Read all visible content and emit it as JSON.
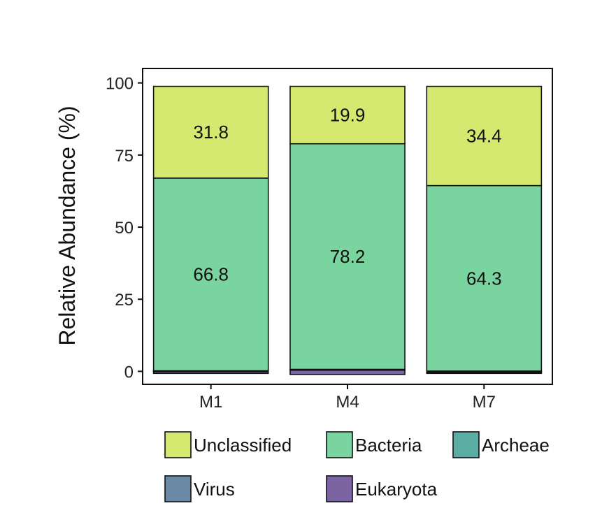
{
  "chart_data": {
    "type": "bar",
    "stacked": true,
    "title": "",
    "xlabel": "",
    "ylabel": "Relative Abundance (%)",
    "ylim": [
      -4.5,
      105
    ],
    "yticks": [
      0,
      25,
      50,
      75,
      100
    ],
    "categories": [
      "M1",
      "M4",
      "M7"
    ],
    "grid": false,
    "legend_position": "bottom",
    "series": [
      {
        "name": "Eukaryota",
        "color": "#7b64a1",
        "values": [
          0.6,
          1.6,
          0.4
        ]
      },
      {
        "name": "Virus",
        "color": "#6a8aa8",
        "values": [
          0.2,
          0.1,
          0.3
        ]
      },
      {
        "name": "Archeae",
        "color": "#5aada2",
        "values": [
          0.1,
          0.1,
          0.1
        ]
      },
      {
        "name": "Bacteria",
        "color": "#7ad4a0",
        "values": [
          66.8,
          78.2,
          64.3
        ]
      },
      {
        "name": "Unclassified",
        "color": "#d5e870",
        "values": [
          31.8,
          19.9,
          34.4
        ]
      }
    ],
    "data_labels": [
      {
        "series": "Unclassified",
        "values": [
          "31.8",
          "19.9",
          "34.4"
        ]
      },
      {
        "series": "Bacteria",
        "values": [
          "66.8",
          "78.2",
          "64.3"
        ]
      }
    ],
    "legend": [
      [
        "Unclassified",
        "Bacteria",
        "Archeae"
      ],
      [
        "Virus",
        "Eukaryota"
      ]
    ]
  }
}
